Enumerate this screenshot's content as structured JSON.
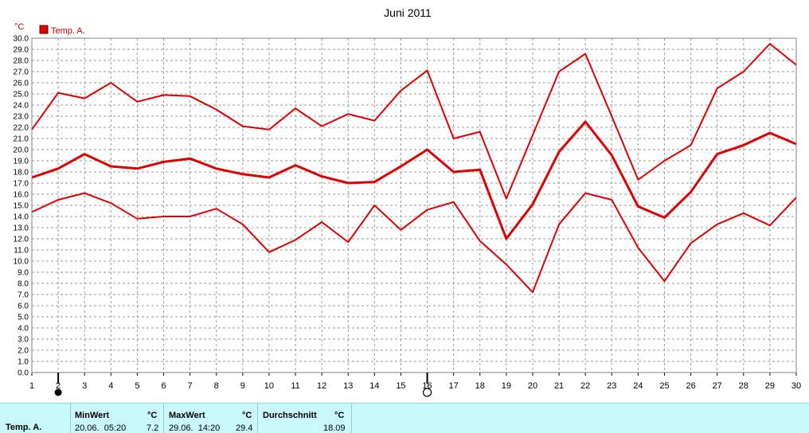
{
  "chart_data": {
    "type": "line",
    "title": "Juni 2011",
    "unit_label": "°C",
    "legend": {
      "label": "Temp. A.",
      "color": "#e00000",
      "placement": "top-left"
    },
    "x": [
      1,
      2,
      3,
      4,
      5,
      6,
      7,
      8,
      9,
      10,
      11,
      12,
      13,
      14,
      15,
      16,
      17,
      18,
      19,
      20,
      21,
      22,
      23,
      24,
      25,
      26,
      27,
      28,
      29,
      30
    ],
    "xlim": [
      1,
      30
    ],
    "ylim": [
      0,
      30
    ],
    "ytick_step": 1,
    "grid": true,
    "series": [
      {
        "role": "max",
        "values": [
          21.8,
          25.1,
          24.6,
          26.0,
          24.3,
          24.9,
          24.8,
          23.6,
          22.1,
          21.8,
          23.7,
          22.1,
          23.2,
          22.6,
          25.3,
          27.1,
          21.0,
          21.6,
          15.6,
          21.3,
          27.0,
          28.6,
          23.0,
          17.3,
          19.0,
          20.4,
          25.5,
          27.0,
          29.5,
          27.6
        ]
      },
      {
        "role": "avg",
        "values": [
          17.5,
          18.3,
          19.6,
          18.5,
          18.3,
          18.9,
          19.2,
          18.3,
          17.8,
          17.5,
          18.6,
          17.6,
          17.0,
          17.1,
          18.5,
          20.0,
          18.0,
          18.2,
          12.0,
          15.1,
          19.8,
          22.5,
          19.5,
          14.9,
          13.9,
          16.2,
          19.6,
          20.4,
          21.5,
          20.5
        ]
      },
      {
        "role": "min",
        "values": [
          14.4,
          15.5,
          16.1,
          15.2,
          13.8,
          14.0,
          14.0,
          14.7,
          13.3,
          10.8,
          11.9,
          13.5,
          11.7,
          15.0,
          12.8,
          14.6,
          15.3,
          11.8,
          9.7,
          7.2,
          13.3,
          16.1,
          15.5,
          11.2,
          8.2,
          11.6,
          13.3,
          14.3,
          13.2,
          15.7
        ]
      }
    ],
    "markers": [
      {
        "day": 2,
        "symbol": "filled-circle"
      },
      {
        "day": 16,
        "symbol": "open-circle"
      }
    ]
  },
  "stats": {
    "row_label": "Temp. A.",
    "min_header": "MinWert",
    "min_unit": "°C",
    "min_time": "20.06.  05:20",
    "min_value": "7.2",
    "max_header": "MaxWert",
    "max_unit": "°C",
    "max_time": "29.06.  14:20",
    "max_value": "29.4",
    "avg_header": "Durchschnitt",
    "avg_unit": "°C",
    "avg_value": "18.09"
  }
}
